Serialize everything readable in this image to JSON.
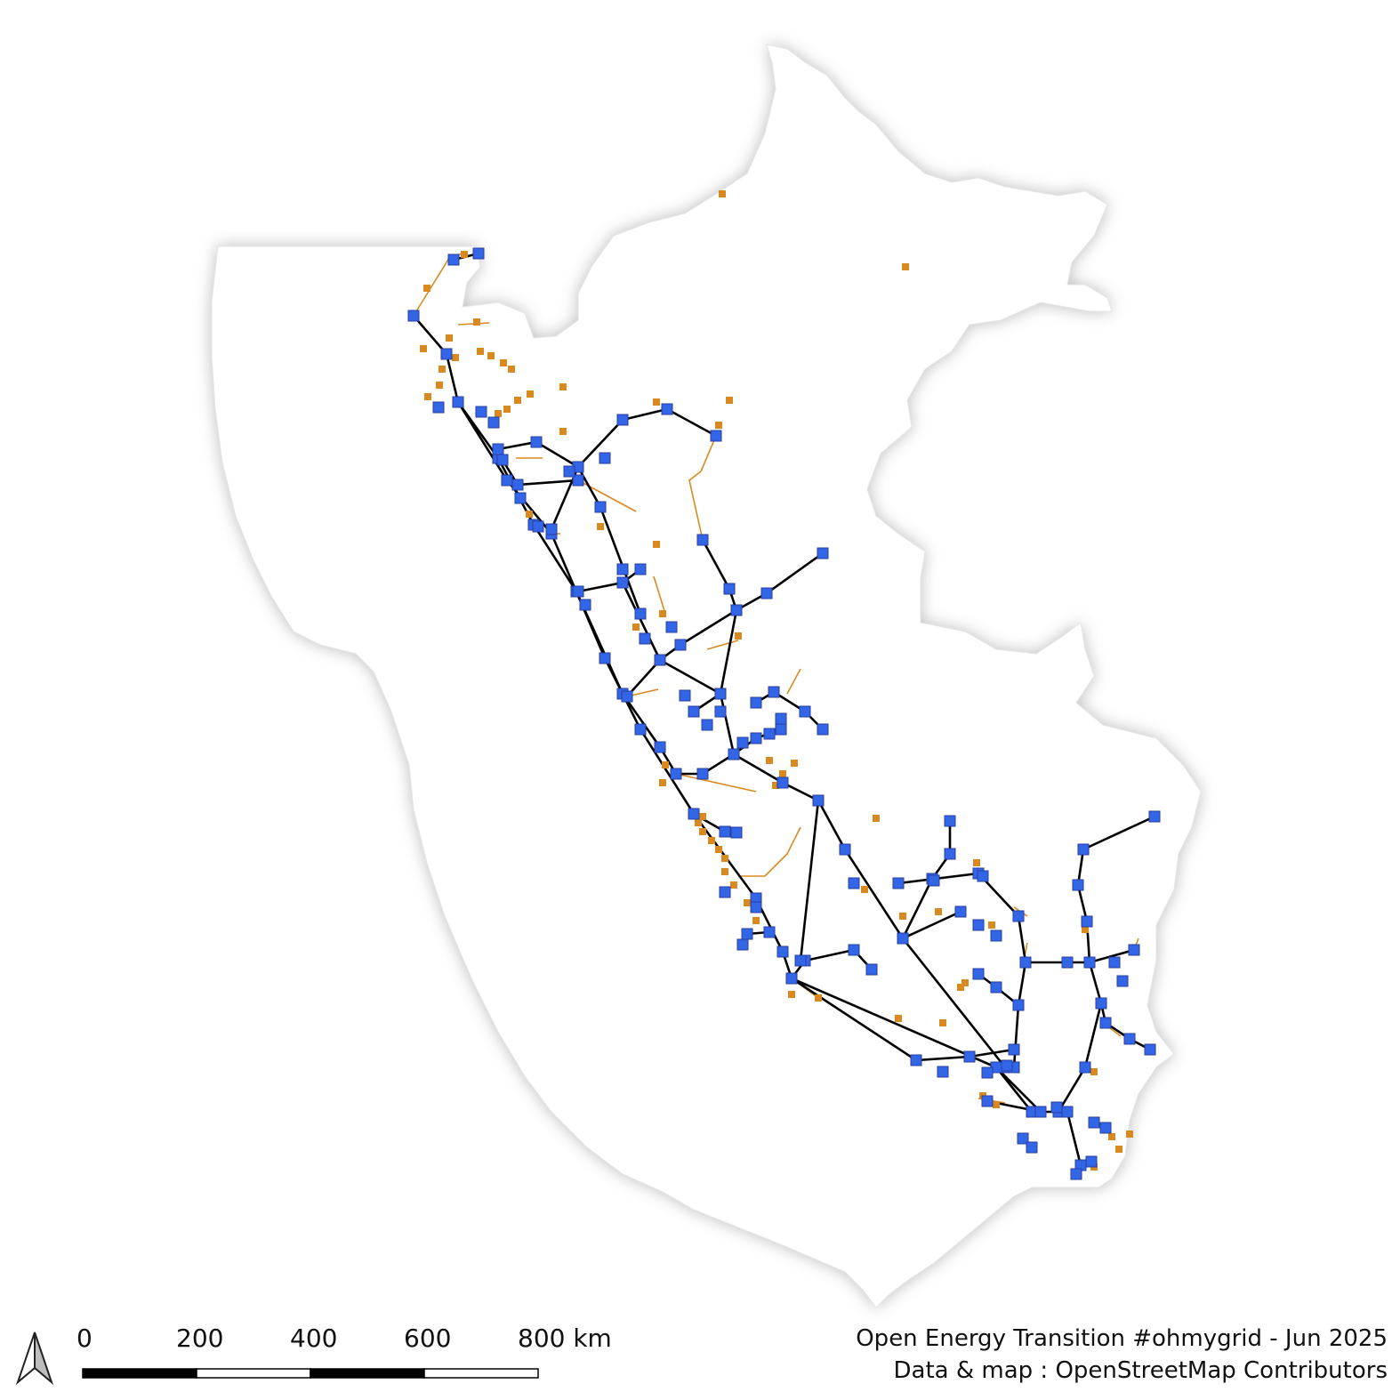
{
  "map": {
    "country": "Peru",
    "land_color": "#ffffff",
    "shadow_color": "#c8c8c8",
    "line_color_high": "#000000",
    "line_color_medium": "#d88a20",
    "substation_color": "#3366e6",
    "plant_color": "#d88a20"
  },
  "scale": {
    "labels": [
      "0",
      "200",
      "400",
      "600",
      "800 km"
    ],
    "dark_color": "#000000",
    "light_color": "#ffffff"
  },
  "north_arrow": {
    "icon": "north-arrow-icon"
  },
  "attribution": {
    "line1": "Open Energy Transition #ohmygrid - Jun 2025",
    "line2": "Data & map : OpenStreetMap Contributors"
  }
}
